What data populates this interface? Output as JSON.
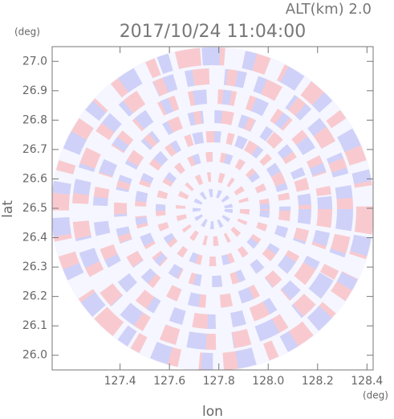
{
  "chart_data": {
    "type": "ppi",
    "title": "2017/10/24 11:04:00",
    "subtitle": "ALT(km) 2.0",
    "x_label": "lon",
    "y_label": "lat",
    "x_unit": "(deg)",
    "y_unit": "(deg)",
    "xlim": [
      127.125,
      128.425
    ],
    "ylim": [
      25.95,
      27.05
    ],
    "xticks": [
      127.4,
      127.6,
      127.8,
      {
        "value": 128,
        "label": "128.0"
      },
      128.2,
      128.4
    ],
    "yticks": [
      {
        "value": 26,
        "label": "26.0"
      },
      26.1,
      26.2,
      26.3,
      26.4,
      26.5,
      26.6,
      26.7,
      26.8,
      26.9,
      {
        "value": 27,
        "label": "27.0"
      }
    ]
  }
}
